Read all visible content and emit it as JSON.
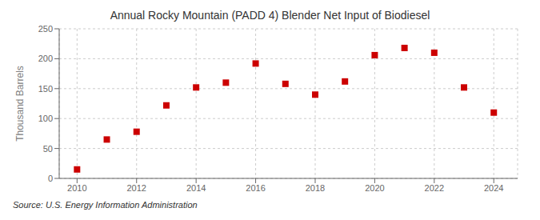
{
  "chart_data": {
    "type": "scatter",
    "title": "Annual Rocky Mountain (PADD 4) Blender Net Input of Biodiesel",
    "ylabel": "Thousand Barrels",
    "annotations": [
      "Source: U.S. Energy Information Administration"
    ],
    "x": [
      2010,
      2011,
      2012,
      2013,
      2014,
      2015,
      2016,
      2017,
      2018,
      2019,
      2020,
      2021,
      2022,
      2023,
      2024
    ],
    "values": [
      15,
      65,
      78,
      122,
      152,
      160,
      192,
      158,
      140,
      162,
      206,
      218,
      210,
      152,
      110
    ],
    "color": "#cc0000",
    "marker": "square",
    "xlim": [
      2009.4,
      2024.8
    ],
    "xticks": [
      2010,
      2012,
      2014,
      2016,
      2018,
      2020,
      2022,
      2024
    ],
    "ylim": [
      0,
      250
    ],
    "yticks": [
      0,
      50,
      100,
      150,
      200,
      250
    ],
    "grid": true
  }
}
